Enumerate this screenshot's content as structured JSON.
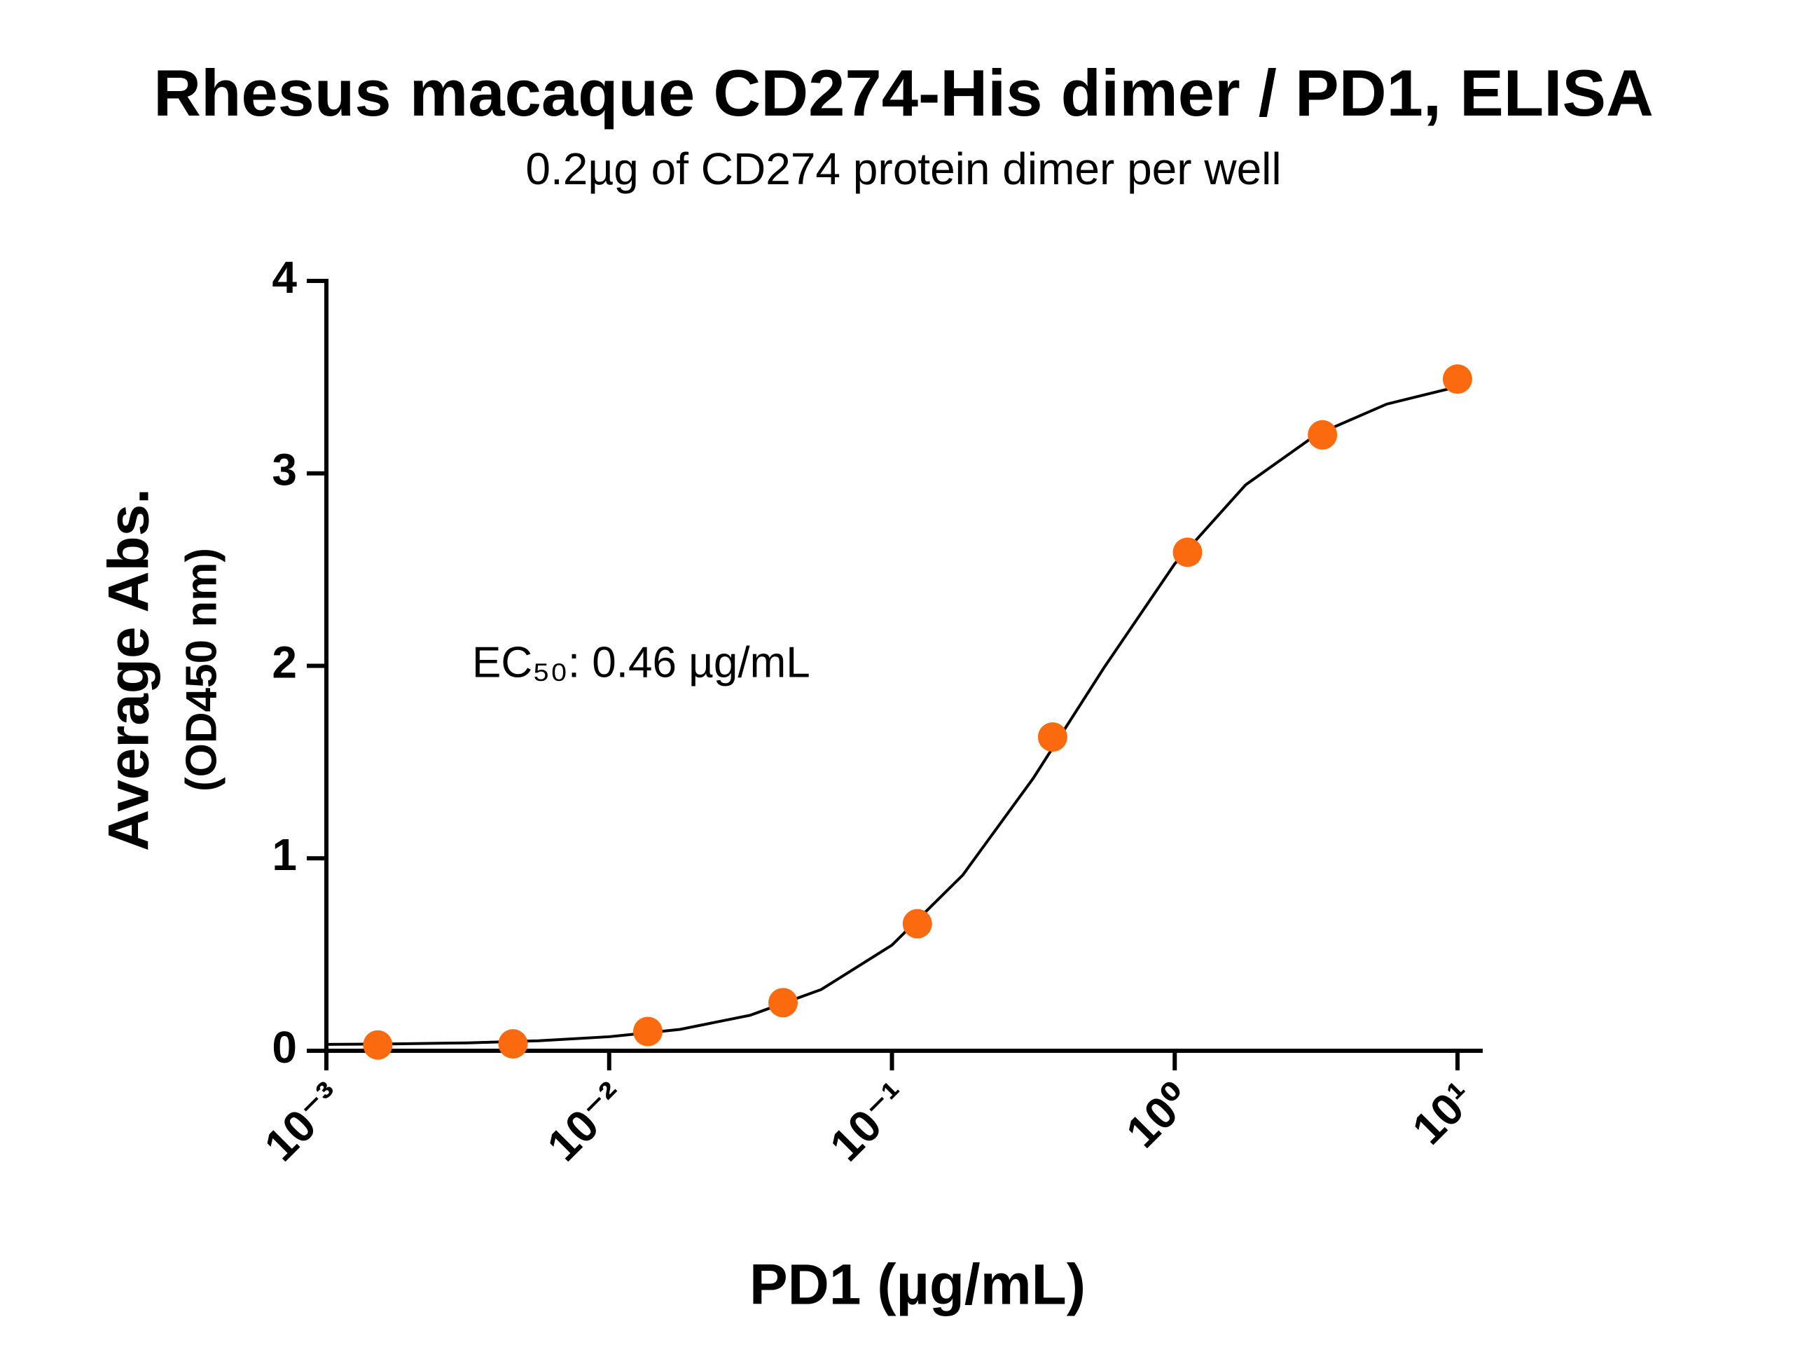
{
  "chart_data": {
    "type": "scatter",
    "title": "Rhesus macaque CD274-His dimer / PD1, ELISA",
    "subtitle": "0.2µg of CD274 protein dimer per well",
    "x_label": "PD1 (µg/mL)",
    "y_label": "Average Abs.",
    "y_label_sub": "(OD450 nm)",
    "annotation": "EC₅₀: 0.46 µg/mL",
    "x_scale": "log",
    "xlim": [
      0.001,
      10
    ],
    "xticks": [
      {
        "value": 0.001,
        "label": "10⁻³"
      },
      {
        "value": 0.01,
        "label": "10⁻²"
      },
      {
        "value": 0.1,
        "label": "10⁻¹"
      },
      {
        "value": 1,
        "label": "10⁰"
      },
      {
        "value": 10,
        "label": "10¹"
      }
    ],
    "ylim": [
      0,
      4
    ],
    "yticks": [
      0,
      1,
      2,
      3,
      4
    ],
    "series": [
      {
        "type": "scatter",
        "color": "#fc6a10",
        "x": [
          0.00152,
          0.00457,
          0.0137,
          0.0412,
          0.123,
          0.37,
          1.11,
          3.33,
          10
        ],
        "values": [
          0.03,
          0.036,
          0.1,
          0.25,
          0.66,
          1.63,
          2.59,
          3.2,
          3.49
        ]
      },
      {
        "type": "line",
        "color": "#000000",
        "x": [
          0.001,
          0.00178,
          0.00316,
          0.00562,
          0.01,
          0.0178,
          0.0316,
          0.0562,
          0.1,
          0.178,
          0.316,
          0.562,
          1,
          1.78,
          3.16,
          5.62,
          10
        ],
        "values": [
          0.033,
          0.036,
          0.041,
          0.052,
          0.073,
          0.111,
          0.185,
          0.318,
          0.549,
          0.913,
          1.416,
          1.99,
          2.53,
          2.94,
          3.2,
          3.36,
          3.45
        ]
      }
    ]
  }
}
